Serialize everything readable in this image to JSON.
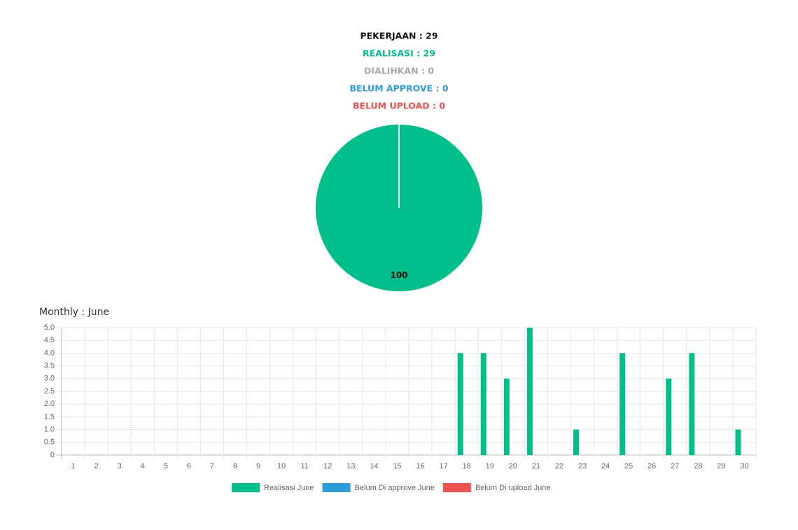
{
  "summary": [
    {
      "text": "PEKERJAAN : 29",
      "color": "#111111"
    },
    {
      "text": "REALISASI : 29",
      "color": "#00bf8a"
    },
    {
      "text": "DIALIHKAN : 0",
      "color": "#a8a8a8"
    },
    {
      "text": "BELUM APPROVE : 0",
      "color": "#2d9cdb"
    },
    {
      "text": "BELUM UPLOAD : 0",
      "color": "#f05050"
    }
  ],
  "chart_data": [
    {
      "type": "pie",
      "values": [
        100
      ],
      "colors": [
        "#00bf8a"
      ]
    },
    {
      "type": "bar",
      "title": "Monthly : June",
      "categories": [
        "1",
        "2",
        "3",
        "4",
        "5",
        "6",
        "7",
        "8",
        "9",
        "10",
        "11",
        "12",
        "13",
        "14",
        "15",
        "16",
        "17",
        "18",
        "19",
        "20",
        "21",
        "22",
        "23",
        "24",
        "25",
        "26",
        "27",
        "28",
        "29",
        "30"
      ],
      "series": [
        {
          "name": "Realisasi June",
          "color": "#00bf8a",
          "values": [
            0,
            0,
            0,
            0,
            0,
            0,
            0,
            0,
            0,
            0,
            0,
            0,
            0,
            0,
            0,
            0,
            0,
            4,
            4,
            3,
            5,
            0,
            1,
            0,
            4,
            0,
            3,
            4,
            0,
            1
          ]
        },
        {
          "name": "Belum Di approve June",
          "color": "#2d9cdb",
          "values": [
            0,
            0,
            0,
            0,
            0,
            0,
            0,
            0,
            0,
            0,
            0,
            0,
            0,
            0,
            0,
            0,
            0,
            0,
            0,
            0,
            0,
            0,
            0,
            0,
            0,
            0,
            0,
            0,
            0,
            0
          ]
        },
        {
          "name": "Belum Di upload June",
          "color": "#f05050",
          "values": [
            0,
            0,
            0,
            0,
            0,
            0,
            0,
            0,
            0,
            0,
            0,
            0,
            0,
            0,
            0,
            0,
            0,
            0,
            0,
            0,
            0,
            0,
            0,
            0,
            0,
            0,
            0,
            0,
            0,
            0
          ]
        }
      ],
      "ylim": [
        0,
        5
      ],
      "yticks": [
        0,
        0.5,
        {
          "value": 1,
          "label": "1.0"
        },
        1.5,
        {
          "value": 2,
          "label": "2.0"
        },
        2.5,
        {
          "value": 3,
          "label": "3.0"
        },
        3.5,
        {
          "value": 4,
          "label": "4.0"
        },
        4.5,
        {
          "value": 5,
          "label": "5.0"
        }
      ],
      "grid": true,
      "legend": "bottom"
    }
  ]
}
